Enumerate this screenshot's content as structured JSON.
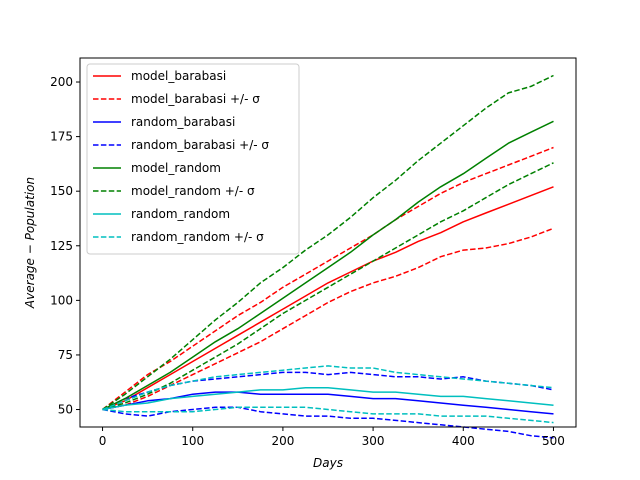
{
  "chart_data": {
    "type": "line",
    "title": "",
    "xlabel": "Days",
    "ylabel": "Average − Population",
    "xlim": [
      -25,
      525
    ],
    "ylim": [
      42,
      211
    ],
    "xticks": [
      0,
      100,
      200,
      300,
      400,
      500
    ],
    "yticks": [
      50,
      75,
      100,
      125,
      150,
      175,
      200
    ],
    "grid": false,
    "legend_position": "top-left",
    "x": [
      0,
      25,
      50,
      75,
      100,
      125,
      150,
      175,
      200,
      225,
      250,
      275,
      300,
      325,
      350,
      375,
      400,
      425,
      450,
      475,
      500
    ],
    "series": [
      {
        "name": "model_barabasi",
        "color": "#ff0000",
        "dash": "solid",
        "values": [
          50,
          54,
          60,
          66,
          72,
          78,
          84,
          90,
          96,
          102,
          108,
          113,
          118,
          122,
          127,
          131,
          136,
          140,
          144,
          148,
          152
        ]
      },
      {
        "name": "model_barabasi +/- σ",
        "color": "#ff0000",
        "dash": "dashed",
        "values": [
          50,
          58,
          66,
          72,
          79,
          86,
          93,
          99,
          106,
          112,
          118,
          124,
          130,
          137,
          143,
          149,
          154,
          158,
          162,
          166,
          170
        ]
      },
      {
        "name": "model_barabasi +/- σ",
        "color": "#ff0000",
        "dash": "dashed",
        "legend": false,
        "values": [
          50,
          52,
          56,
          61,
          66,
          71,
          76,
          81,
          87,
          93,
          99,
          104,
          108,
          111,
          115,
          120,
          123,
          124,
          126,
          129,
          133
        ]
      },
      {
        "name": "random_barabasi",
        "color": "#0000ff",
        "dash": "solid",
        "values": [
          50,
          52,
          54,
          55,
          57,
          58,
          58,
          57,
          57,
          57,
          57,
          56,
          55,
          55,
          54,
          53,
          52,
          51,
          50,
          49,
          48
        ]
      },
      {
        "name": "random_barabasi +/- σ",
        "color": "#0000ff",
        "dash": "dashed",
        "values": [
          50,
          55,
          58,
          61,
          63,
          64,
          65,
          66,
          67,
          67,
          66,
          67,
          66,
          65,
          65,
          64,
          65,
          63,
          62,
          61,
          59
        ]
      },
      {
        "name": "random_barabasi +/- σ",
        "color": "#0000ff",
        "dash": "dashed",
        "legend": false,
        "values": [
          50,
          48,
          47,
          49,
          50,
          51,
          51,
          49,
          48,
          47,
          47,
          46,
          46,
          45,
          44,
          43,
          42,
          41,
          40,
          38,
          37
        ]
      },
      {
        "name": "model_random",
        "color": "#008000",
        "dash": "solid",
        "values": [
          50,
          55,
          61,
          67,
          74,
          81,
          87,
          94,
          101,
          108,
          115,
          122,
          130,
          137,
          145,
          152,
          158,
          165,
          172,
          177,
          182
        ]
      },
      {
        "name": "model_random +/- σ",
        "color": "#008000",
        "dash": "dashed",
        "values": [
          50,
          57,
          65,
          73,
          82,
          91,
          99,
          108,
          115,
          123,
          130,
          138,
          147,
          155,
          164,
          172,
          180,
          188,
          195,
          198,
          203
        ]
      },
      {
        "name": "model_random +/- σ",
        "color": "#008000",
        "dash": "dashed",
        "legend": false,
        "values": [
          50,
          53,
          57,
          62,
          68,
          74,
          80,
          87,
          94,
          100,
          106,
          112,
          118,
          124,
          130,
          136,
          141,
          147,
          153,
          158,
          163
        ]
      },
      {
        "name": "random_random",
        "color": "#00bfbf",
        "dash": "solid",
        "values": [
          50,
          52,
          53,
          55,
          56,
          57,
          58,
          59,
          59,
          60,
          60,
          59,
          58,
          58,
          57,
          56,
          56,
          55,
          54,
          53,
          52
        ]
      },
      {
        "name": "random_random +/- σ",
        "color": "#00bfbf",
        "dash": "dashed",
        "values": [
          50,
          54,
          58,
          61,
          63,
          65,
          66,
          67,
          68,
          69,
          70,
          69,
          69,
          67,
          66,
          65,
          64,
          63,
          62,
          61,
          60
        ]
      },
      {
        "name": "random_random +/- σ",
        "color": "#00bfbf",
        "dash": "dashed",
        "legend": false,
        "values": [
          50,
          49,
          49,
          49,
          49,
          50,
          51,
          51,
          51,
          51,
          50,
          49,
          48,
          48,
          48,
          47,
          47,
          47,
          46,
          45,
          44
        ]
      }
    ]
  }
}
